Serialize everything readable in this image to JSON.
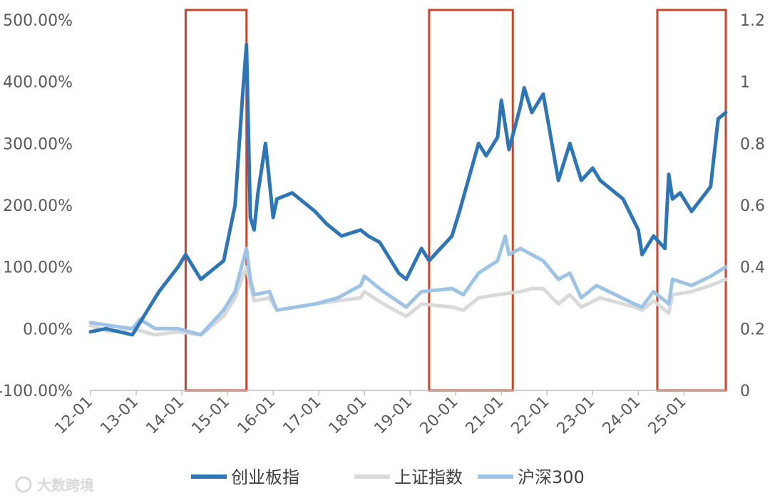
{
  "chart_data": {
    "type": "line",
    "x_ticks": [
      "12-01",
      "13-01",
      "14-01",
      "15-01",
      "16-01",
      "17-01",
      "18-01",
      "19-01",
      "20-01",
      "21-01",
      "22-01",
      "23-01",
      "24-01",
      "25-01"
    ],
    "y_left_ticks": [
      "500.00%",
      "400.00%",
      "300.00%",
      "200.00%",
      "100.00%",
      "0.00%",
      "-100.00%"
    ],
    "y_right_ticks": [
      "1.2",
      "1",
      "0.8",
      "0.6",
      "0.4",
      "0.2",
      "0"
    ],
    "y_left_range": [
      -100,
      500
    ],
    "y_right_range": [
      0,
      1.2
    ],
    "x_range": [
      "2012-01",
      "2025-12"
    ],
    "highlight_periods": [
      [
        "2014-02",
        "2015-06"
      ],
      [
        "2019-06",
        "2021-04"
      ],
      [
        "2024-06",
        "2025-12"
      ]
    ],
    "highlight_color": "#c9452b",
    "series": [
      {
        "name": "创业板指",
        "color": "#2e75b6",
        "points": [
          [
            "2012-01",
            -5
          ],
          [
            "2012-05",
            0
          ],
          [
            "2012-12",
            -10
          ],
          [
            "2013-03",
            20
          ],
          [
            "2013-07",
            60
          ],
          [
            "2013-12",
            100
          ],
          [
            "2014-02",
            120
          ],
          [
            "2014-06",
            80
          ],
          [
            "2014-12",
            110
          ],
          [
            "2015-03",
            200
          ],
          [
            "2015-05",
            380
          ],
          [
            "2015-06",
            460
          ],
          [
            "2015-07",
            180
          ],
          [
            "2015-08",
            160
          ],
          [
            "2015-09",
            220
          ],
          [
            "2015-11",
            300
          ],
          [
            "2016-01",
            180
          ],
          [
            "2016-02",
            210
          ],
          [
            "2016-06",
            220
          ],
          [
            "2016-12",
            190
          ],
          [
            "2017-03",
            170
          ],
          [
            "2017-07",
            150
          ],
          [
            "2017-12",
            160
          ],
          [
            "2018-02",
            150
          ],
          [
            "2018-05",
            140
          ],
          [
            "2018-10",
            90
          ],
          [
            "2018-12",
            80
          ],
          [
            "2019-04",
            130
          ],
          [
            "2019-06",
            110
          ],
          [
            "2019-12",
            150
          ],
          [
            "2020-02",
            190
          ],
          [
            "2020-07",
            300
          ],
          [
            "2020-09",
            280
          ],
          [
            "2020-12",
            310
          ],
          [
            "2021-01",
            370
          ],
          [
            "2021-03",
            290
          ],
          [
            "2021-06",
            360
          ],
          [
            "2021-07",
            390
          ],
          [
            "2021-09",
            350
          ],
          [
            "2021-12",
            380
          ],
          [
            "2022-04",
            240
          ],
          [
            "2022-07",
            300
          ],
          [
            "2022-10",
            240
          ],
          [
            "2023-01",
            260
          ],
          [
            "2023-03",
            240
          ],
          [
            "2023-09",
            210
          ],
          [
            "2024-01",
            160
          ],
          [
            "2024-02",
            120
          ],
          [
            "2024-05",
            150
          ],
          [
            "2024-08",
            130
          ],
          [
            "2024-09",
            250
          ],
          [
            "2024-10",
            210
          ],
          [
            "2024-12",
            220
          ],
          [
            "2025-03",
            190
          ],
          [
            "2025-08",
            230
          ],
          [
            "2025-10",
            340
          ],
          [
            "2025-12",
            350
          ]
        ]
      },
      {
        "name": "上证指数",
        "color": "#d9d9d9",
        "points": [
          [
            "2012-01",
            5
          ],
          [
            "2012-06",
            -5
          ],
          [
            "2012-12",
            0
          ],
          [
            "2013-06",
            -10
          ],
          [
            "2013-12",
            -5
          ],
          [
            "2014-06",
            -10
          ],
          [
            "2014-12",
            20
          ],
          [
            "2015-03",
            50
          ],
          [
            "2015-06",
            100
          ],
          [
            "2015-07",
            70
          ],
          [
            "2015-08",
            45
          ],
          [
            "2015-12",
            50
          ],
          [
            "2016-02",
            30
          ],
          [
            "2016-12",
            40
          ],
          [
            "2017-06",
            45
          ],
          [
            "2017-12",
            50
          ],
          [
            "2018-01",
            60
          ],
          [
            "2018-06",
            40
          ],
          [
            "2018-12",
            20
          ],
          [
            "2019-04",
            40
          ],
          [
            "2019-12",
            35
          ],
          [
            "2020-03",
            30
          ],
          [
            "2020-07",
            50
          ],
          [
            "2020-12",
            55
          ],
          [
            "2021-06",
            60
          ],
          [
            "2021-09",
            65
          ],
          [
            "2021-12",
            65
          ],
          [
            "2022-04",
            40
          ],
          [
            "2022-07",
            55
          ],
          [
            "2022-10",
            35
          ],
          [
            "2023-03",
            50
          ],
          [
            "2023-12",
            35
          ],
          [
            "2024-02",
            30
          ],
          [
            "2024-05",
            45
          ],
          [
            "2024-09",
            25
          ],
          [
            "2024-10",
            55
          ],
          [
            "2025-03",
            60
          ],
          [
            "2025-08",
            70
          ],
          [
            "2025-12",
            80
          ]
        ]
      },
      {
        "name": "沪深300",
        "color": "#9dc3e6",
        "points": [
          [
            "2012-01",
            10
          ],
          [
            "2012-06",
            5
          ],
          [
            "2012-12",
            0
          ],
          [
            "2013-02",
            15
          ],
          [
            "2013-06",
            0
          ],
          [
            "2013-12",
            0
          ],
          [
            "2014-06",
            -10
          ],
          [
            "2014-12",
            30
          ],
          [
            "2015-03",
            60
          ],
          [
            "2015-06",
            130
          ],
          [
            "2015-07",
            80
          ],
          [
            "2015-08",
            55
          ],
          [
            "2015-12",
            60
          ],
          [
            "2016-02",
            30
          ],
          [
            "2016-12",
            40
          ],
          [
            "2017-06",
            50
          ],
          [
            "2017-12",
            70
          ],
          [
            "2018-01",
            85
          ],
          [
            "2018-06",
            60
          ],
          [
            "2018-12",
            35
          ],
          [
            "2019-04",
            60
          ],
          [
            "2019-12",
            65
          ],
          [
            "2020-03",
            55
          ],
          [
            "2020-07",
            90
          ],
          [
            "2020-12",
            110
          ],
          [
            "2021-02",
            150
          ],
          [
            "2021-03",
            120
          ],
          [
            "2021-06",
            130
          ],
          [
            "2021-12",
            110
          ],
          [
            "2022-04",
            80
          ],
          [
            "2022-07",
            90
          ],
          [
            "2022-10",
            50
          ],
          [
            "2023-02",
            70
          ],
          [
            "2023-12",
            40
          ],
          [
            "2024-02",
            35
          ],
          [
            "2024-05",
            60
          ],
          [
            "2024-09",
            40
          ],
          [
            "2024-10",
            80
          ],
          [
            "2025-03",
            70
          ],
          [
            "2025-08",
            85
          ],
          [
            "2025-12",
            100
          ]
        ]
      }
    ]
  },
  "watermark": "大数跨境"
}
